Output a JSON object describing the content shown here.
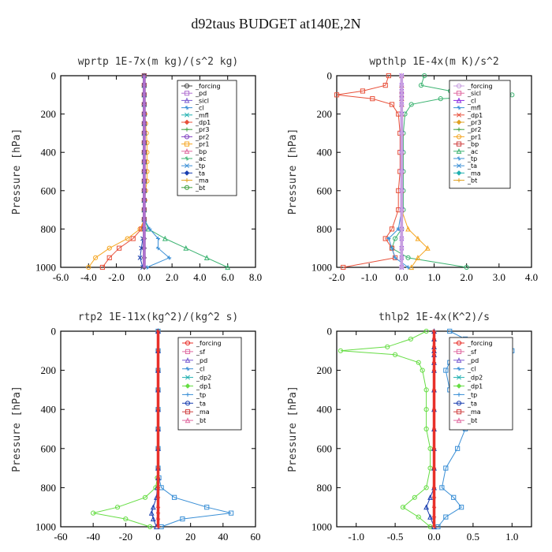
{
  "page_title": "d92taus  BUDGET at140E,2N",
  "chart_data": [
    {
      "type": "line",
      "title": "wprtp  1E-7x(m kg)/(s^2 kg)",
      "xlabel": "",
      "ylabel": "Pressure [hPa]",
      "xlim": [
        -6,
        8
      ],
      "ylim": [
        1000,
        0
      ],
      "xticks": [
        -6,
        -4,
        -2,
        0,
        2,
        4,
        6,
        8
      ],
      "xtick_labels": [
        "-6.0",
        "-4.0",
        "-2.0",
        "0.0",
        "2.0",
        "4.0",
        "6.0",
        "8.0"
      ],
      "yticks": [
        0,
        200,
        400,
        600,
        800,
        1000
      ],
      "ytick_labels": [
        "0",
        "200",
        "400",
        "600",
        "800",
        "1000"
      ],
      "pressure": [
        0,
        50,
        100,
        150,
        200,
        250,
        300,
        350,
        400,
        450,
        500,
        550,
        600,
        650,
        700,
        750,
        800,
        850,
        900,
        950,
        1000
      ],
      "legend": [
        "_forcing",
        "_pd",
        "_sicl",
        "_cl",
        "_mfl",
        "_dp1",
        "_pr3",
        "_pr2",
        "_pr1",
        "_bp",
        "_ac",
        "_tp",
        "_ta",
        "_ma",
        "_bt"
      ],
      "series": [
        {
          "name": "_pr1",
          "color": "#f5a623",
          "values": [
            0,
            0,
            0,
            0,
            0.05,
            0.1,
            0.15,
            0.2,
            0.2,
            0.2,
            0.2,
            0.2,
            0.1,
            0.05,
            0,
            0,
            -0.3,
            -1.2,
            -2.5,
            -3.5,
            -4.0
          ]
        },
        {
          "name": "_dp1",
          "color": "#e8503a",
          "values": [
            0,
            0,
            0,
            0,
            0,
            0,
            0,
            0,
            0,
            0,
            0,
            0,
            0,
            0,
            0,
            0,
            -0.2,
            -0.8,
            -1.8,
            -2.5,
            -3.0
          ]
        },
        {
          "name": "_ac",
          "color": "#3cb371",
          "values": [
            0,
            0,
            0,
            0,
            0,
            0,
            0,
            0,
            0,
            0,
            0,
            0,
            0,
            0,
            0,
            0,
            0.3,
            1.5,
            3.0,
            4.5,
            6.0
          ]
        },
        {
          "name": "_tp",
          "color": "#3a8fd6",
          "values": [
            0,
            0,
            0,
            0,
            0,
            0,
            0,
            0,
            0,
            0,
            0,
            0,
            0,
            0,
            0,
            0,
            0.4,
            1.0,
            1.0,
            1.8,
            0.2
          ]
        },
        {
          "name": "_ta",
          "color": "#1a3fb0",
          "values": [
            0,
            0,
            0,
            0,
            0,
            0,
            0,
            0,
            0,
            0,
            0,
            0,
            0,
            0,
            0,
            0,
            0,
            -0.1,
            -0.2,
            -0.3,
            -0.1
          ]
        },
        {
          "name": "_forcing",
          "color": "#444444",
          "values": [
            0,
            0,
            0,
            0,
            0,
            0,
            0,
            0,
            0,
            0,
            0,
            0,
            0,
            0,
            0,
            0,
            0,
            0,
            0,
            0,
            0
          ]
        },
        {
          "name": "_pd",
          "color": "#b070d0",
          "values": [
            0,
            0,
            0,
            0,
            0,
            0,
            0,
            0,
            0,
            0,
            0,
            0,
            0,
            0,
            0,
            0,
            0,
            0,
            0,
            0,
            0
          ]
        }
      ]
    },
    {
      "type": "line",
      "title": "wpthlp  1E-4x(m K)/s^2",
      "xlabel": "",
      "ylabel": "Pressure [hPa]",
      "xlim": [
        -2,
        4
      ],
      "ylim": [
        1000,
        0
      ],
      "xticks": [
        -2,
        -1,
        0,
        1,
        2,
        3,
        4
      ],
      "xtick_labels": [
        "-2.0",
        "-1.0",
        "0.0",
        "1.0",
        "2.0",
        "3.0",
        "4.0"
      ],
      "yticks": [
        0,
        200,
        400,
        600,
        800,
        1000
      ],
      "ytick_labels": [
        "0",
        "200",
        "400",
        "600",
        "800",
        "1000"
      ],
      "pressure": [
        0,
        50,
        80,
        100,
        120,
        150,
        200,
        300,
        400,
        500,
        600,
        700,
        800,
        850,
        900,
        950,
        1000
      ],
      "legend": [
        "_forcing",
        "_sicl",
        "_cl",
        "_mfl",
        "_dp1",
        "_pr3",
        "_pr2",
        "_pr1",
        "_bp",
        "_ac",
        "_tp",
        "_ta",
        "_ma",
        "_bt"
      ],
      "series": [
        {
          "name": "_ac",
          "color": "#3cb371",
          "values": [
            0.7,
            0.6,
            1.5,
            3.4,
            1.2,
            0.3,
            0.1,
            0.05,
            0.05,
            0.05,
            0.05,
            0.05,
            0,
            -0.2,
            -0.3,
            0.2,
            2.0
          ]
        },
        {
          "name": "_dp1",
          "color": "#e8503a",
          "values": [
            -0.4,
            -0.5,
            -1.2,
            -2.0,
            -0.9,
            -0.3,
            -0.1,
            -0.05,
            -0.05,
            -0.05,
            -0.1,
            -0.1,
            -0.3,
            -0.5,
            -0.3,
            -0.2,
            -1.8
          ]
        },
        {
          "name": "_pr1",
          "color": "#f5a623",
          "values": [
            0,
            0,
            0,
            0,
            0,
            0,
            0,
            0,
            0,
            0,
            0,
            0,
            0.2,
            0.5,
            0.8,
            0.5,
            0.3
          ]
        },
        {
          "name": "_tp",
          "color": "#3a8fd6",
          "values": [
            0,
            0,
            0,
            0,
            0,
            0,
            0,
            0,
            0,
            0,
            0,
            0,
            -0.1,
            -0.4,
            -0.3,
            -0.2,
            0.2
          ]
        },
        {
          "name": "_cl",
          "color": "#8a2be2",
          "values": [
            0,
            0,
            0,
            0,
            0,
            0,
            0,
            0,
            0,
            0,
            0,
            0,
            0,
            0,
            0,
            0,
            0
          ]
        },
        {
          "name": "_forcing",
          "color": "#c8a0e0",
          "values": [
            0,
            0,
            0,
            0,
            0,
            0,
            0,
            0,
            0,
            0,
            0,
            0,
            0,
            0,
            0,
            0,
            0
          ]
        }
      ]
    },
    {
      "type": "line",
      "title": "rtp2  1E-11x(kg^2)/(kg^2 s)",
      "xlabel": "",
      "ylabel": "Pressure [hPa]",
      "xlim": [
        -60,
        60
      ],
      "ylim": [
        1000,
        0
      ],
      "xticks": [
        -60,
        -40,
        -20,
        0,
        20,
        40,
        60
      ],
      "xtick_labels": [
        "-60",
        "-40",
        "-20",
        "0",
        "20",
        "40",
        "60"
      ],
      "yticks": [
        0,
        200,
        400,
        600,
        800,
        1000
      ],
      "ytick_labels": [
        "0",
        "200",
        "400",
        "600",
        "800",
        "1000"
      ],
      "pressure": [
        0,
        100,
        200,
        300,
        400,
        500,
        600,
        700,
        750,
        800,
        850,
        900,
        930,
        960,
        1000
      ],
      "legend": [
        "_forcing",
        "_sf",
        "_pd",
        "_cl",
        "_dp2",
        "_dp1",
        "_tp",
        "_ta",
        "_ma",
        "_bt"
      ],
      "series": [
        {
          "name": "_dp1",
          "color": "#66dd44",
          "values": [
            0,
            0,
            0,
            0,
            0,
            0,
            0,
            0,
            -0.5,
            -1.5,
            -8,
            -25,
            -40,
            -20,
            -5
          ]
        },
        {
          "name": "_tp",
          "color": "#3a8fd6",
          "values": [
            0,
            0,
            0,
            0,
            0,
            0,
            0,
            0,
            0.5,
            2,
            10,
            30,
            45,
            15,
            2
          ]
        },
        {
          "name": "_ta",
          "color": "#1a3fb0",
          "values": [
            0,
            0,
            0,
            0,
            0,
            0,
            0,
            0,
            0,
            -0.5,
            -1,
            -3,
            -4,
            -3,
            -1
          ]
        },
        {
          "name": "_forcing",
          "color": "#e8302a",
          "values": [
            0,
            0,
            0,
            0,
            0,
            0,
            0,
            0,
            0,
            0,
            0,
            0,
            0,
            0,
            0
          ]
        }
      ]
    },
    {
      "type": "line",
      "title": "thlp2  1E-4x(K^2)/s",
      "xlabel": "",
      "ylabel": "Pressure [hPa]",
      "xlim": [
        -1.25,
        1.25
      ],
      "ylim": [
        1000,
        0
      ],
      "xticks": [
        -1.0,
        -0.5,
        0.0,
        0.5,
        1.0
      ],
      "xtick_labels": [
        "-1.0",
        "-0.5",
        "0.0",
        "0.5",
        "1.0"
      ],
      "yticks": [
        0,
        200,
        400,
        600,
        800,
        1000
      ],
      "ytick_labels": [
        "0",
        "200",
        "400",
        "600",
        "800",
        "1000"
      ],
      "pressure": [
        0,
        40,
        80,
        100,
        120,
        160,
        200,
        300,
        400,
        500,
        600,
        700,
        800,
        850,
        900,
        950,
        1000
      ],
      "legend": [
        "_forcing",
        "_sf",
        "_pd",
        "_cl",
        "_dp2",
        "_dp1",
        "_tp",
        "_ta",
        "_ma",
        "_bt"
      ],
      "series": [
        {
          "name": "_dp1",
          "color": "#66dd44",
          "values": [
            -0.1,
            -0.3,
            -0.6,
            -1.2,
            -0.5,
            -0.2,
            -0.15,
            -0.1,
            -0.1,
            -0.1,
            -0.05,
            -0.05,
            -0.1,
            -0.25,
            -0.4,
            -0.2,
            -0.05
          ]
        },
        {
          "name": "_tp",
          "color": "#3a8fd6",
          "values": [
            0.2,
            0.4,
            0.6,
            1.0,
            0.5,
            0.2,
            0.15,
            0.2,
            0.3,
            0.4,
            0.3,
            0.15,
            0.1,
            0.25,
            0.35,
            0.15,
            0.05
          ]
        },
        {
          "name": "_ta",
          "color": "#1a3fb0",
          "values": [
            0,
            0,
            0,
            0,
            0,
            0,
            0,
            0,
            0,
            0,
            0,
            0,
            0,
            -0.05,
            -0.1,
            -0.05,
            0
          ]
        },
        {
          "name": "_forcing",
          "color": "#e8302a",
          "values": [
            0,
            0,
            0,
            0,
            0,
            0,
            0,
            0,
            0,
            0,
            0,
            0,
            0,
            0,
            0,
            0,
            0
          ]
        }
      ]
    }
  ]
}
